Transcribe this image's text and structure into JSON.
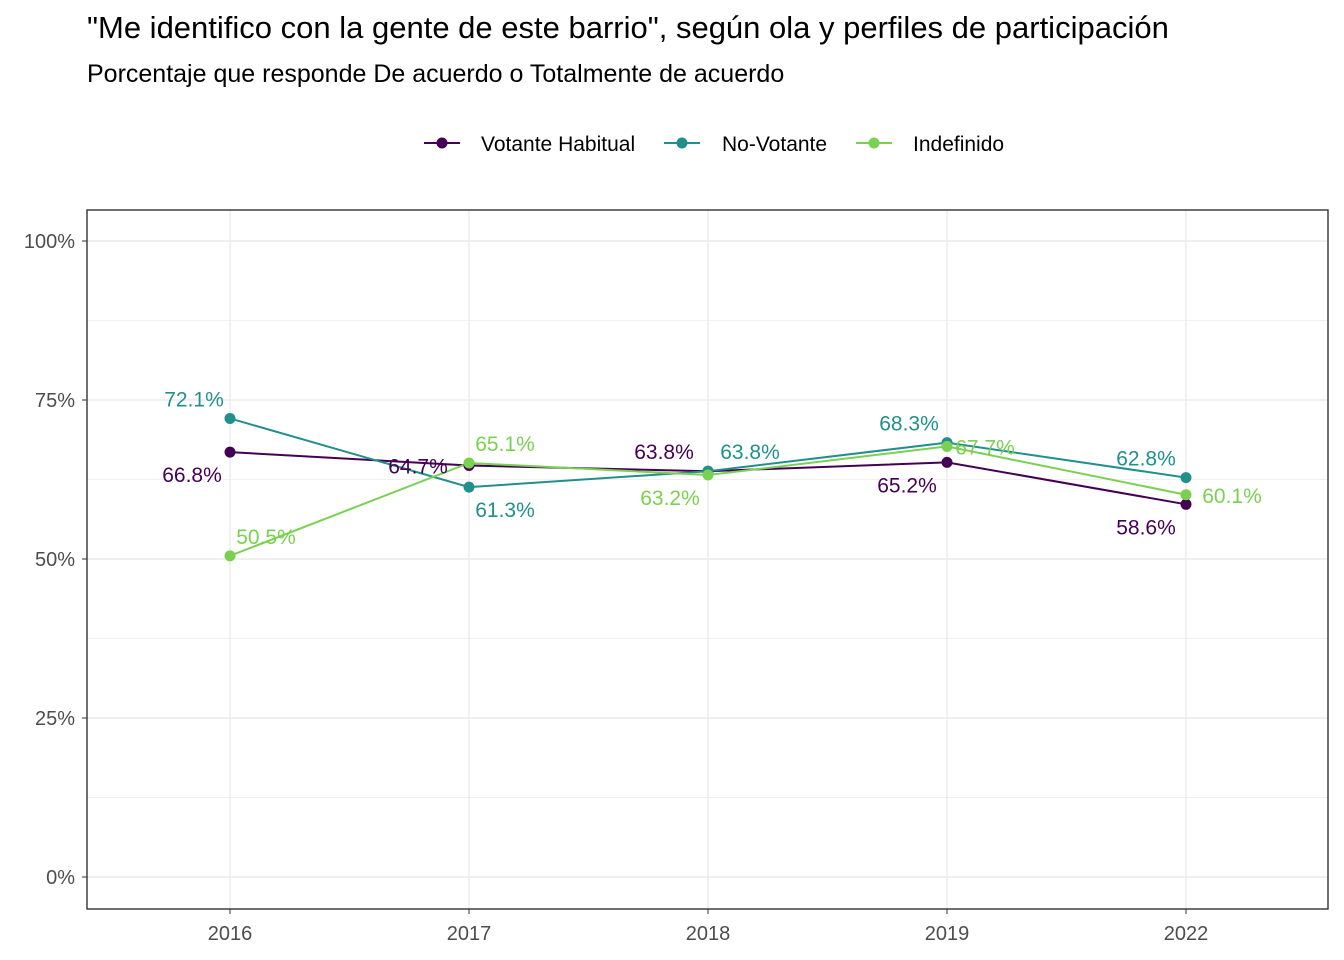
{
  "chart_data": {
    "type": "line",
    "title": "\"Me identifico con la gente de este barrio\", según ola y perfiles de participación",
    "subtitle": "Porcentaje que responde De acuerdo o Totalmente de acuerdo",
    "xlabel": "",
    "ylabel": "",
    "categories": [
      "2016",
      "2017",
      "2018",
      "2019",
      "2022"
    ],
    "ylim": [
      0,
      1
    ],
    "y_ticks": [
      0,
      0.25,
      0.5,
      0.75,
      1
    ],
    "y_tick_labels": [
      "0%",
      "25%",
      "50%",
      "75%",
      "100%"
    ],
    "grid": true,
    "legend_position": "top",
    "series": [
      {
        "name": "Votante Habitual",
        "color": "#440154",
        "values": [
          0.668,
          0.647,
          0.638,
          0.652,
          0.586
        ],
        "labels": [
          "66.8%",
          "64.7%",
          "63.8%",
          "65.2%",
          "58.6%"
        ]
      },
      {
        "name": "No-Votante",
        "color": "#21908C",
        "values": [
          0.721,
          0.613,
          0.638,
          0.683,
          0.628
        ],
        "labels": [
          "72.1%",
          "61.3%",
          "63.8%",
          "68.3%",
          "62.8%"
        ]
      },
      {
        "name": "Indefinido",
        "color": "#7AD151",
        "values": [
          0.505,
          0.651,
          0.632,
          0.677,
          0.601
        ],
        "labels": [
          "50.5%",
          "65.1%",
          "63.2%",
          "67.7%",
          "60.1%"
        ]
      }
    ]
  }
}
